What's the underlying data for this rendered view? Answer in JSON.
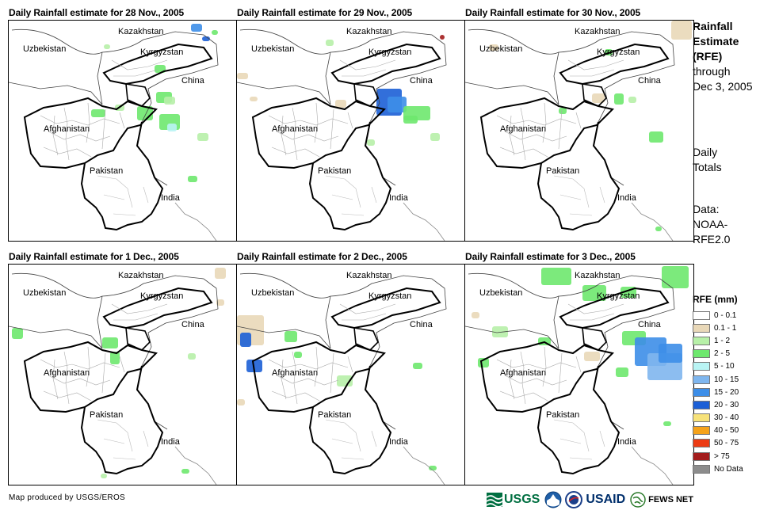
{
  "panels": [
    {
      "title": "Daily Rainfall estimate for 28 Nov., 2005"
    },
    {
      "title": "Daily Rainfall estimate for 29 Nov., 2005"
    },
    {
      "title": "Daily Rainfall estimate for 30 Nov., 2005"
    },
    {
      "title": "Daily Rainfall estimate for 1 Dec., 2005"
    },
    {
      "title": "Daily Rainfall estimate for 2 Dec., 2005"
    },
    {
      "title": "Daily Rainfall estimate for 3 Dec., 2005"
    }
  ],
  "map_labels": {
    "kazakhstan": "Kazakhstan",
    "uzbekistan": "Uzbekistan",
    "kyrgyzstan": "Kyrgyzstan",
    "china": "China",
    "afghanistan": "Afghanistan",
    "pakistan": "Pakistan",
    "india": "India"
  },
  "sidebar": {
    "line1": "Rainfall",
    "line2": "Estimate",
    "line3": "(RFE)",
    "line4": "through",
    "line5": "Dec 3, 2005",
    "totals1": "Daily",
    "totals2": "Totals",
    "data1": "Data:",
    "data2": "NOAA-",
    "data3": "RFE2.0"
  },
  "legend": {
    "title": "RFE (mm)",
    "items": [
      {
        "label": "0 - 0.1",
        "color": "#ffffff"
      },
      {
        "label": "0.1 - 1",
        "color": "#e9d8b8"
      },
      {
        "label": "1 - 2",
        "color": "#b7f0a8"
      },
      {
        "label": "2 - 5",
        "color": "#6ee86e"
      },
      {
        "label": "5 - 10",
        "color": "#b9f4f4"
      },
      {
        "label": "10 - 15",
        "color": "#7fb6ee"
      },
      {
        "label": "15 - 20",
        "color": "#3d8ee8"
      },
      {
        "label": "20 - 30",
        "color": "#1c5fd6"
      },
      {
        "label": "30 - 40",
        "color": "#f7e27a"
      },
      {
        "label": "40 - 50",
        "color": "#f5a21a"
      },
      {
        "label": "50 - 75",
        "color": "#ec3b14"
      },
      {
        "label": "> 75",
        "color": "#a31c1c"
      },
      {
        "label": "No Data",
        "color": "#8c8c8c"
      }
    ]
  },
  "footer": {
    "credit": "Map produced by USGS/EROS",
    "logo_usgs": "USGS",
    "logo_usaid": "USAID",
    "logo_fews": "FEWS NET"
  }
}
